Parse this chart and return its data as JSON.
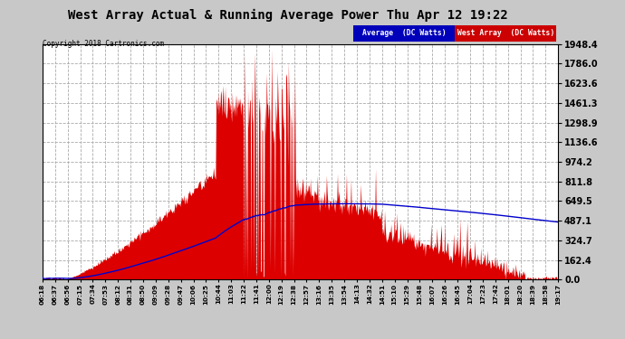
{
  "title": "West Array Actual & Running Average Power Thu Apr 12 19:22",
  "copyright": "Copyright 2018 Cartronics.com",
  "legend_avg": "Average  (DC Watts)",
  "legend_west": "West Array  (DC Watts)",
  "ylabel_right_ticks": [
    0.0,
    162.4,
    324.7,
    487.1,
    649.5,
    811.8,
    974.2,
    1136.6,
    1298.9,
    1461.3,
    1623.6,
    1786.0,
    1948.4
  ],
  "ymax": 1948.4,
  "ymin": 0.0,
  "plot_bg_color": "#ffffff",
  "fig_bg": "#c8c8c8",
  "grid_color": "#aaaaaa",
  "red_color": "#dd0000",
  "blue_color": "#0000cc",
  "x_labels": [
    "06:18",
    "06:37",
    "06:56",
    "07:15",
    "07:34",
    "07:53",
    "08:12",
    "08:31",
    "08:50",
    "09:09",
    "09:28",
    "09:47",
    "10:06",
    "10:25",
    "10:44",
    "11:03",
    "11:22",
    "11:41",
    "12:00",
    "12:19",
    "12:38",
    "12:57",
    "13:16",
    "13:35",
    "13:54",
    "14:13",
    "14:32",
    "14:51",
    "15:10",
    "15:29",
    "15:48",
    "16:07",
    "16:26",
    "16:45",
    "17:04",
    "17:23",
    "17:42",
    "18:01",
    "18:20",
    "18:39",
    "18:58",
    "19:17"
  ]
}
